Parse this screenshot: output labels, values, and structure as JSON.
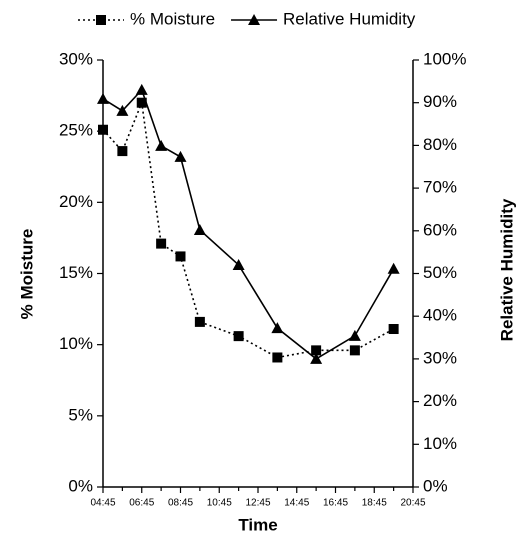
{
  "chart_data": {
    "type": "line",
    "x_label": "Time",
    "y_label": "% Moisture",
    "y2_label": "Relative Humidity",
    "x": [
      4.75,
      5.75,
      6.75,
      7.75,
      8.75,
      9.75,
      11.75,
      13.75,
      15.75,
      17.75,
      19.75
    ],
    "series": [
      {
        "name": "% Moisture",
        "color": "#000000",
        "marker": "square",
        "line_style": "dotted",
        "axis": "y",
        "values": [
          25.1,
          23.6,
          27.0,
          17.1,
          16.2,
          11.6,
          10.6,
          9.1,
          9.6,
          9.6,
          11.1
        ]
      },
      {
        "name": "Relative Humidity",
        "color": "#000000",
        "marker": "triangle",
        "line_style": "solid",
        "axis": "y2",
        "values": [
          90.9,
          88.1,
          93.0,
          79.9,
          77.3,
          60.2,
          52.0,
          37.2,
          30.0,
          35.4,
          51.1
        ]
      }
    ],
    "xlim": [
      4.75,
      20.75
    ],
    "xticks": [
      {
        "value": 4.75,
        "label": "04:45"
      },
      {
        "value": 6.75,
        "label": "06:45"
      },
      {
        "value": 8.75,
        "label": "08:45"
      },
      {
        "value": 10.75,
        "label": "10:45"
      },
      {
        "value": 12.75,
        "label": "12:45"
      },
      {
        "value": 14.75,
        "label": "14:45"
      },
      {
        "value": 16.75,
        "label": "16:45"
      },
      {
        "value": 18.75,
        "label": "18:45"
      },
      {
        "value": 20.75,
        "label": "20:45"
      }
    ],
    "ylim": [
      0,
      30
    ],
    "yticks": [
      {
        "value": 0,
        "label": "0%"
      },
      {
        "value": 5,
        "label": "5%"
      },
      {
        "value": 10,
        "label": "10%"
      },
      {
        "value": 15,
        "label": "15%"
      },
      {
        "value": 20,
        "label": "20%"
      },
      {
        "value": 25,
        "label": "25%"
      },
      {
        "value": 30,
        "label": "30%"
      }
    ],
    "y2lim": [
      0,
      100
    ],
    "y2ticks": [
      {
        "value": 0,
        "label": "0%"
      },
      {
        "value": 10,
        "label": "10%"
      },
      {
        "value": 20,
        "label": "20%"
      },
      {
        "value": 30,
        "label": "30%"
      },
      {
        "value": 40,
        "label": "40%"
      },
      {
        "value": 50,
        "label": "50%"
      },
      {
        "value": 60,
        "label": "60%"
      },
      {
        "value": 70,
        "label": "70%"
      },
      {
        "value": 80,
        "label": "80%"
      },
      {
        "value": 90,
        "label": "90%"
      },
      {
        "value": 100,
        "label": "100%"
      }
    ],
    "legend": "top",
    "grid": false
  }
}
